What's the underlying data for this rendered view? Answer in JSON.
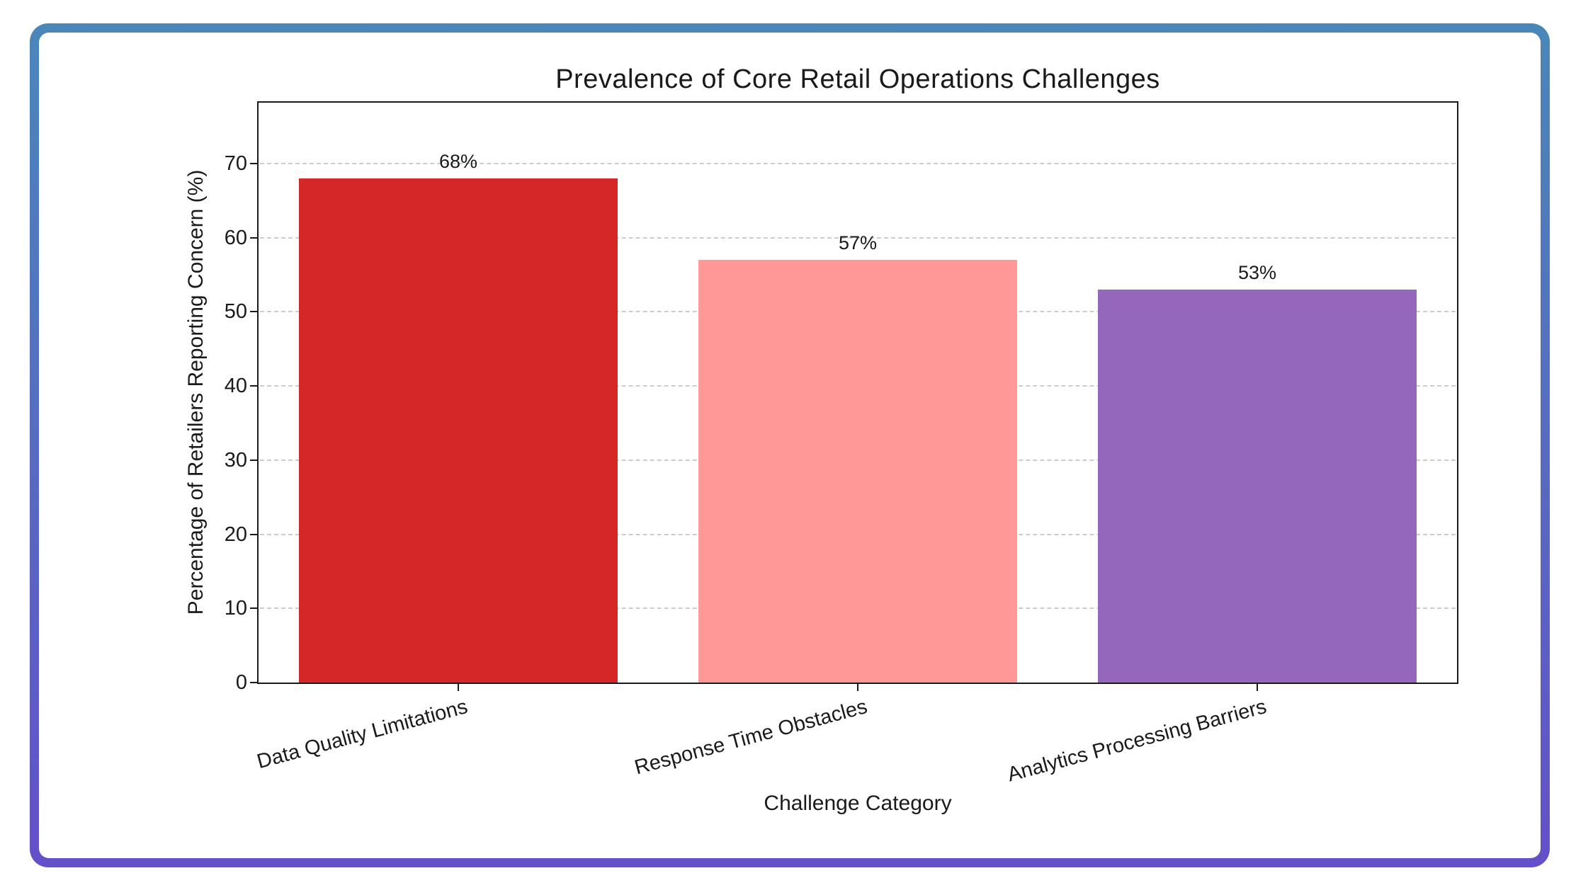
{
  "chart_data": {
    "type": "bar",
    "title": "Prevalence of Core Retail Operations Challenges",
    "xlabel": "Challenge Category",
    "ylabel": "Percentage of Retailers Reporting Concern (%)",
    "categories": [
      "Data Quality Limitations",
      "Response Time Obstacles",
      "Analytics Processing Barriers"
    ],
    "values": [
      68,
      57,
      53
    ],
    "value_labels": [
      "68%",
      "57%",
      "53%"
    ],
    "bar_colors": [
      "#d62728",
      "#ff9896",
      "#9467bd"
    ],
    "yticks": [
      0,
      10,
      20,
      30,
      40,
      50,
      60,
      70
    ],
    "ylim": [
      0,
      78.2
    ],
    "grid": {
      "axis": "y",
      "style": "dashed",
      "color": "#cccccc"
    },
    "legend": "none",
    "xtick_rotation_deg": 15
  },
  "frame": {
    "gradient_top": "#4a87b9",
    "gradient_bottom": "#6450c8",
    "background": "#ffffff"
  },
  "styles": {
    "spine_color": "#1a1a1a",
    "text_color": "#1a1a1a",
    "grid_color": "#cccccc"
  }
}
